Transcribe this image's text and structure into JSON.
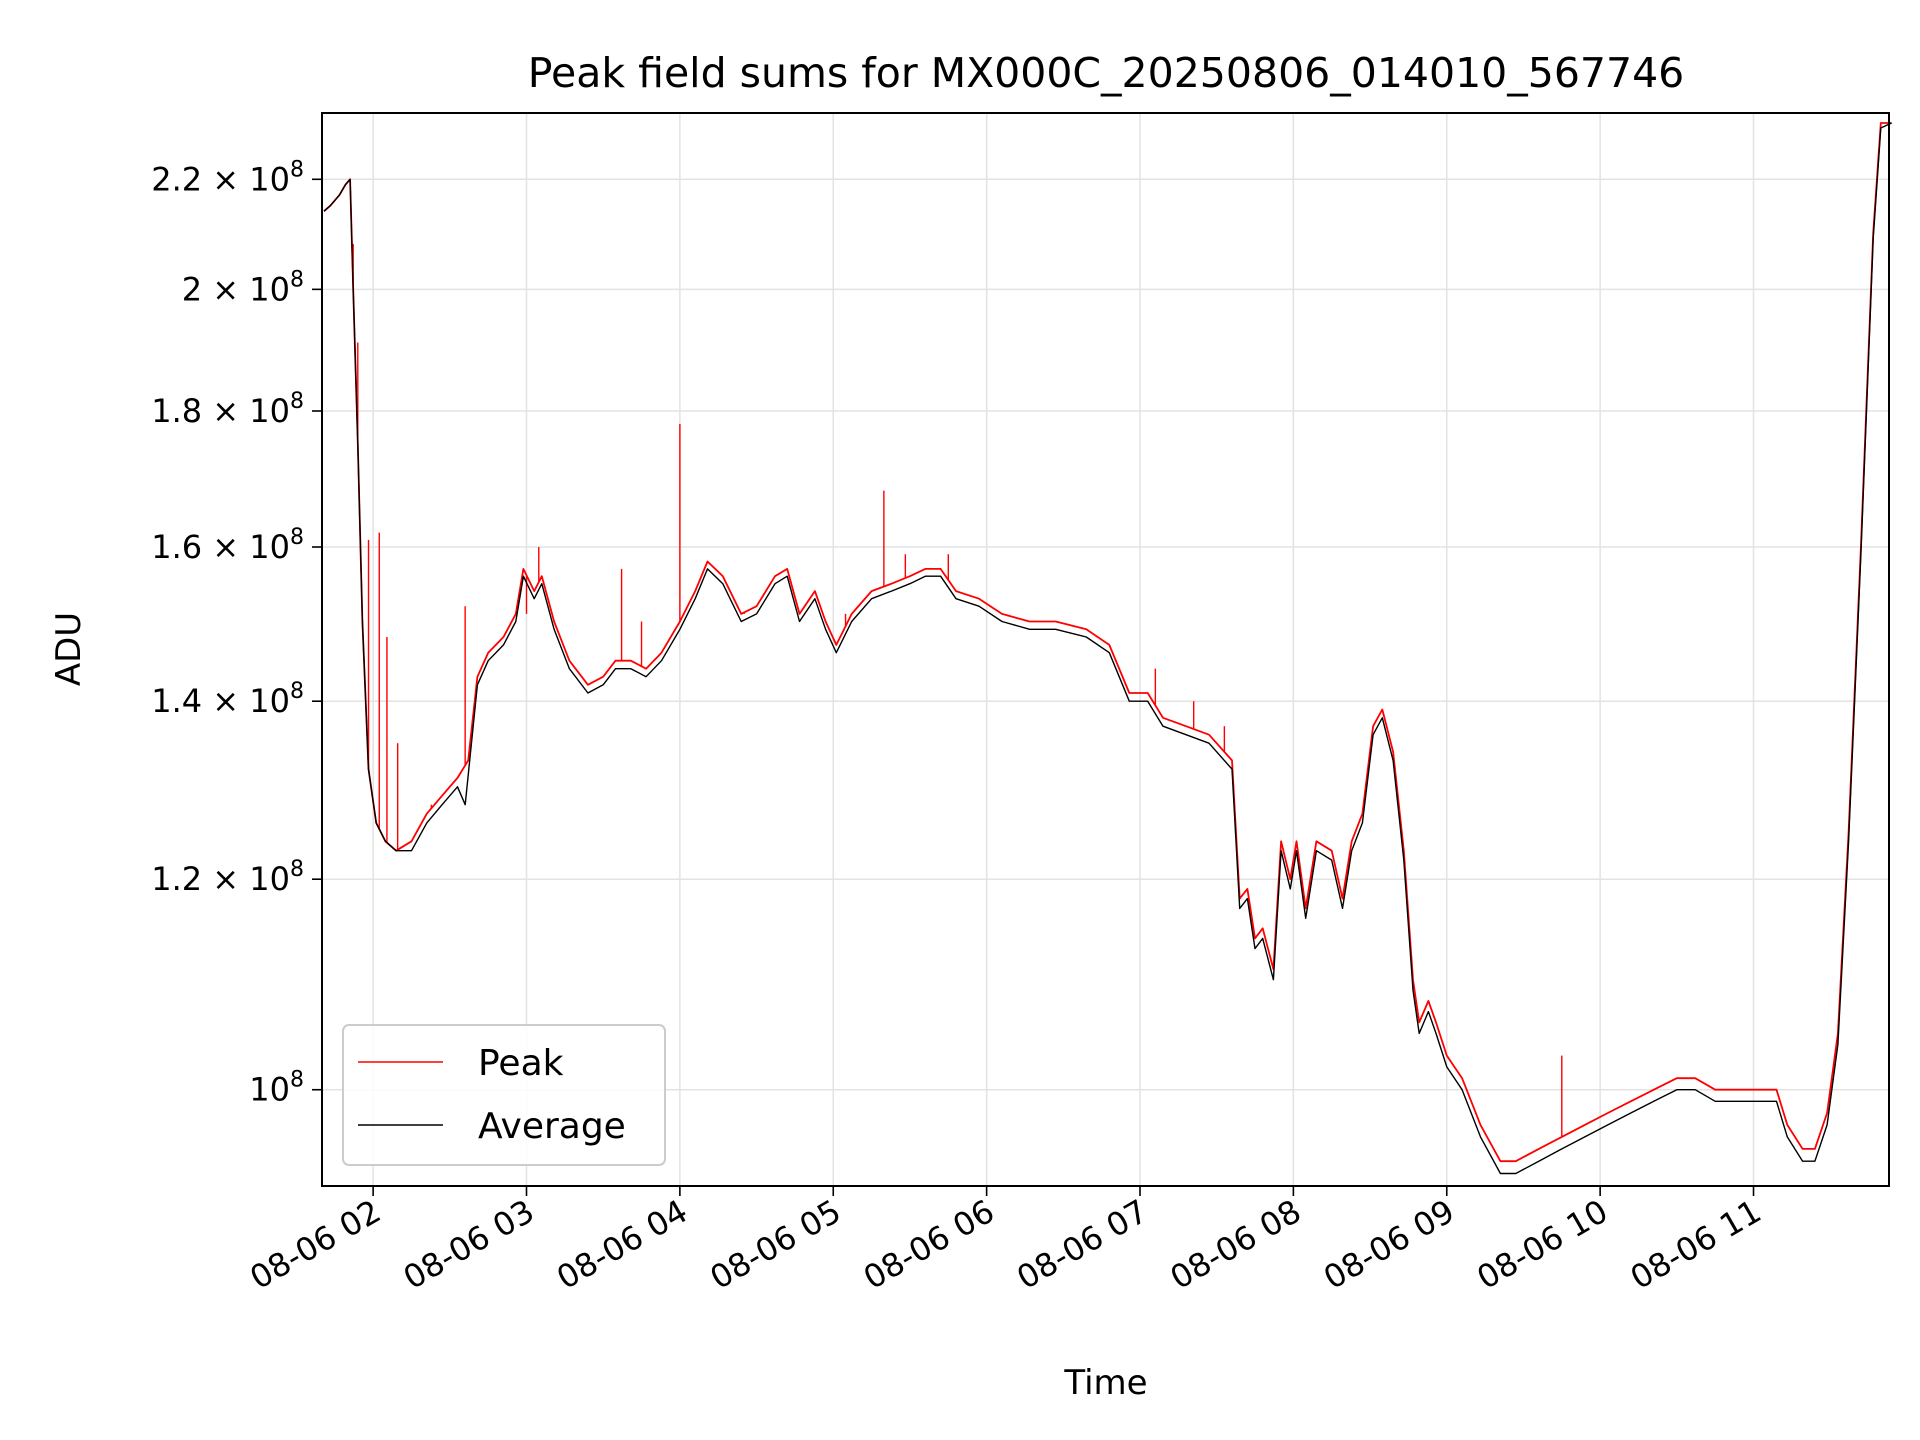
{
  "chart_data": {
    "type": "line",
    "title": "Peak field sums for MX000C_20250806_014010_567746",
    "xlabel": "Time",
    "ylabel": "ADU",
    "y_scale": "log",
    "xlim": [
      "08-06 01:40",
      "08-06 11:53"
    ],
    "ylim": [
      92000000,
      233000000
    ],
    "grid": true,
    "legend_position": "lower-left",
    "x_ticks": [
      "08-06 02",
      "08-06 03",
      "08-06 04",
      "08-06 05",
      "08-06 06",
      "08-06 07",
      "08-06 08",
      "08-06 09",
      "08-06 10",
      "08-06 11"
    ],
    "y_ticks": [
      {
        "value": 100000000,
        "mantissa": "",
        "exponent": "8"
      },
      {
        "value": 120000000,
        "mantissa": "1.2",
        "exponent": "8"
      },
      {
        "value": 140000000,
        "mantissa": "1.4",
        "exponent": "8"
      },
      {
        "value": 160000000,
        "mantissa": "1.6",
        "exponent": "8"
      },
      {
        "value": 180000000,
        "mantissa": "1.8",
        "exponent": "8"
      },
      {
        "value": 200000000,
        "mantissa": "2",
        "exponent": "8"
      },
      {
        "value": 220000000,
        "mantissa": "2.2",
        "exponent": "8"
      }
    ],
    "x_format": "hours after 08-06 00:00",
    "series": [
      {
        "name": "Peak",
        "color": "#ff0000",
        "points": [
          [
            1.68,
            214
          ],
          [
            1.72,
            215
          ],
          [
            1.78,
            217
          ],
          [
            1.82,
            219
          ],
          [
            1.85,
            220
          ],
          [
            1.87,
            200
          ],
          [
            1.9,
            175
          ],
          [
            1.93,
            150
          ],
          [
            1.97,
            132
          ],
          [
            2.02,
            126
          ],
          [
            2.08,
            124
          ],
          [
            2.15,
            123
          ],
          [
            2.25,
            124
          ],
          [
            2.35,
            127
          ],
          [
            2.45,
            129
          ],
          [
            2.55,
            131
          ],
          [
            2.62,
            133
          ],
          [
            2.68,
            143
          ],
          [
            2.75,
            146
          ],
          [
            2.85,
            148
          ],
          [
            2.93,
            151
          ],
          [
            2.98,
            157
          ],
          [
            3.05,
            154
          ],
          [
            3.1,
            156
          ],
          [
            3.18,
            150
          ],
          [
            3.28,
            145
          ],
          [
            3.4,
            142
          ],
          [
            3.5,
            143
          ],
          [
            3.58,
            145
          ],
          [
            3.68,
            145
          ],
          [
            3.78,
            144
          ],
          [
            3.88,
            146
          ],
          [
            4.0,
            150
          ],
          [
            4.1,
            154
          ],
          [
            4.18,
            158
          ],
          [
            4.28,
            156
          ],
          [
            4.4,
            151
          ],
          [
            4.5,
            152
          ],
          [
            4.62,
            156
          ],
          [
            4.7,
            157
          ],
          [
            4.78,
            151
          ],
          [
            4.88,
            154
          ],
          [
            4.95,
            150
          ],
          [
            5.02,
            147
          ],
          [
            5.12,
            151
          ],
          [
            5.25,
            154
          ],
          [
            5.38,
            155
          ],
          [
            5.5,
            156
          ],
          [
            5.6,
            157
          ],
          [
            5.7,
            157
          ],
          [
            5.8,
            154
          ],
          [
            5.95,
            153
          ],
          [
            6.1,
            151
          ],
          [
            6.28,
            150
          ],
          [
            6.45,
            150
          ],
          [
            6.65,
            149
          ],
          [
            6.8,
            147
          ],
          [
            6.93,
            141
          ],
          [
            7.05,
            141
          ],
          [
            7.15,
            138
          ],
          [
            7.3,
            137
          ],
          [
            7.45,
            136
          ],
          [
            7.6,
            133
          ],
          [
            7.65,
            118
          ],
          [
            7.7,
            119
          ],
          [
            7.75,
            114
          ],
          [
            7.8,
            115
          ],
          [
            7.87,
            111
          ],
          [
            7.92,
            124
          ],
          [
            7.98,
            120
          ],
          [
            8.02,
            124
          ],
          [
            8.08,
            117
          ],
          [
            8.15,
            124
          ],
          [
            8.25,
            123
          ],
          [
            8.32,
            118
          ],
          [
            8.38,
            124
          ],
          [
            8.45,
            127
          ],
          [
            8.52,
            137
          ],
          [
            8.58,
            139
          ],
          [
            8.65,
            134
          ],
          [
            8.72,
            123
          ],
          [
            8.78,
            110
          ],
          [
            8.82,
            106
          ],
          [
            8.88,
            108
          ],
          [
            8.93,
            106
          ],
          [
            9.0,
            103
          ],
          [
            9.1,
            101
          ],
          [
            9.22,
            97
          ],
          [
            9.35,
            94
          ],
          [
            9.45,
            94
          ],
          [
            9.6,
            95
          ],
          [
            9.75,
            96
          ],
          [
            9.9,
            97
          ],
          [
            10.05,
            98
          ],
          [
            10.2,
            99
          ],
          [
            10.35,
            100
          ],
          [
            10.5,
            101
          ],
          [
            10.62,
            101
          ],
          [
            10.75,
            100
          ],
          [
            10.9,
            100
          ],
          [
            11.05,
            100
          ],
          [
            11.15,
            100
          ],
          [
            11.22,
            97
          ],
          [
            11.32,
            95
          ],
          [
            11.4,
            95
          ],
          [
            11.48,
            98
          ],
          [
            11.55,
            105
          ],
          [
            11.62,
            125
          ],
          [
            11.7,
            160
          ],
          [
            11.78,
            210
          ],
          [
            11.83,
            231
          ],
          [
            11.9,
            231
          ]
        ],
        "spikes": [
          [
            1.87,
            208
          ],
          [
            1.9,
            191
          ],
          [
            1.97,
            161
          ],
          [
            2.04,
            162
          ],
          [
            2.09,
            148
          ],
          [
            2.16,
            135
          ],
          [
            2.38,
            128
          ],
          [
            2.6,
            152
          ],
          [
            3.0,
            151
          ],
          [
            3.08,
            160
          ],
          [
            3.62,
            157
          ],
          [
            3.75,
            150
          ],
          [
            4.0,
            178
          ],
          [
            4.42,
            151
          ],
          [
            5.08,
            151
          ],
          [
            5.33,
            168
          ],
          [
            5.47,
            159
          ],
          [
            5.75,
            159
          ],
          [
            7.1,
            144
          ],
          [
            7.35,
            140
          ],
          [
            7.55,
            137
          ],
          [
            9.75,
            103
          ]
        ]
      },
      {
        "name": "Average",
        "color": "#000000",
        "points": [
          [
            1.68,
            214
          ],
          [
            1.72,
            215
          ],
          [
            1.78,
            217
          ],
          [
            1.82,
            219
          ],
          [
            1.85,
            220
          ],
          [
            1.87,
            200
          ],
          [
            1.9,
            175
          ],
          [
            1.93,
            150
          ],
          [
            1.97,
            132
          ],
          [
            2.02,
            126
          ],
          [
            2.08,
            124
          ],
          [
            2.15,
            123
          ],
          [
            2.25,
            123
          ],
          [
            2.35,
            126
          ],
          [
            2.45,
            128
          ],
          [
            2.55,
            130
          ],
          [
            2.6,
            128
          ],
          [
            2.68,
            142
          ],
          [
            2.75,
            145
          ],
          [
            2.85,
            147
          ],
          [
            2.93,
            150
          ],
          [
            2.98,
            156
          ],
          [
            3.05,
            153
          ],
          [
            3.1,
            155
          ],
          [
            3.18,
            149
          ],
          [
            3.28,
            144
          ],
          [
            3.4,
            141
          ],
          [
            3.5,
            142
          ],
          [
            3.58,
            144
          ],
          [
            3.68,
            144
          ],
          [
            3.78,
            143
          ],
          [
            3.88,
            145
          ],
          [
            4.0,
            149
          ],
          [
            4.1,
            153
          ],
          [
            4.18,
            157
          ],
          [
            4.28,
            155
          ],
          [
            4.4,
            150
          ],
          [
            4.5,
            151
          ],
          [
            4.62,
            155
          ],
          [
            4.7,
            156
          ],
          [
            4.78,
            150
          ],
          [
            4.88,
            153
          ],
          [
            4.95,
            149
          ],
          [
            5.02,
            146
          ],
          [
            5.12,
            150
          ],
          [
            5.25,
            153
          ],
          [
            5.38,
            154
          ],
          [
            5.5,
            155
          ],
          [
            5.6,
            156
          ],
          [
            5.7,
            156
          ],
          [
            5.8,
            153
          ],
          [
            5.95,
            152
          ],
          [
            6.1,
            150
          ],
          [
            6.28,
            149
          ],
          [
            6.45,
            149
          ],
          [
            6.65,
            148
          ],
          [
            6.8,
            146
          ],
          [
            6.93,
            140
          ],
          [
            7.05,
            140
          ],
          [
            7.15,
            137
          ],
          [
            7.3,
            136
          ],
          [
            7.45,
            135
          ],
          [
            7.6,
            132
          ],
          [
            7.65,
            117
          ],
          [
            7.7,
            118
          ],
          [
            7.75,
            113
          ],
          [
            7.8,
            114
          ],
          [
            7.87,
            110
          ],
          [
            7.92,
            123
          ],
          [
            7.98,
            119
          ],
          [
            8.02,
            123
          ],
          [
            8.08,
            116
          ],
          [
            8.15,
            123
          ],
          [
            8.25,
            122
          ],
          [
            8.32,
            117
          ],
          [
            8.38,
            123
          ],
          [
            8.45,
            126
          ],
          [
            8.52,
            136
          ],
          [
            8.58,
            138
          ],
          [
            8.65,
            133
          ],
          [
            8.72,
            122
          ],
          [
            8.78,
            109
          ],
          [
            8.82,
            105
          ],
          [
            8.88,
            107
          ],
          [
            8.93,
            105
          ],
          [
            9.0,
            102
          ],
          [
            9.1,
            100
          ],
          [
            9.22,
            96
          ],
          [
            9.35,
            93
          ],
          [
            9.45,
            93
          ],
          [
            9.6,
            94
          ],
          [
            9.75,
            95
          ],
          [
            9.9,
            96
          ],
          [
            10.05,
            97
          ],
          [
            10.2,
            98
          ],
          [
            10.35,
            99
          ],
          [
            10.5,
            100
          ],
          [
            10.62,
            100
          ],
          [
            10.75,
            99
          ],
          [
            10.9,
            99
          ],
          [
            11.05,
            99
          ],
          [
            11.15,
            99
          ],
          [
            11.22,
            96
          ],
          [
            11.32,
            94
          ],
          [
            11.4,
            94
          ],
          [
            11.48,
            97
          ],
          [
            11.55,
            104
          ],
          [
            11.62,
            124
          ],
          [
            11.7,
            159
          ],
          [
            11.78,
            209
          ],
          [
            11.83,
            230
          ],
          [
            11.9,
            231
          ]
        ]
      }
    ]
  }
}
